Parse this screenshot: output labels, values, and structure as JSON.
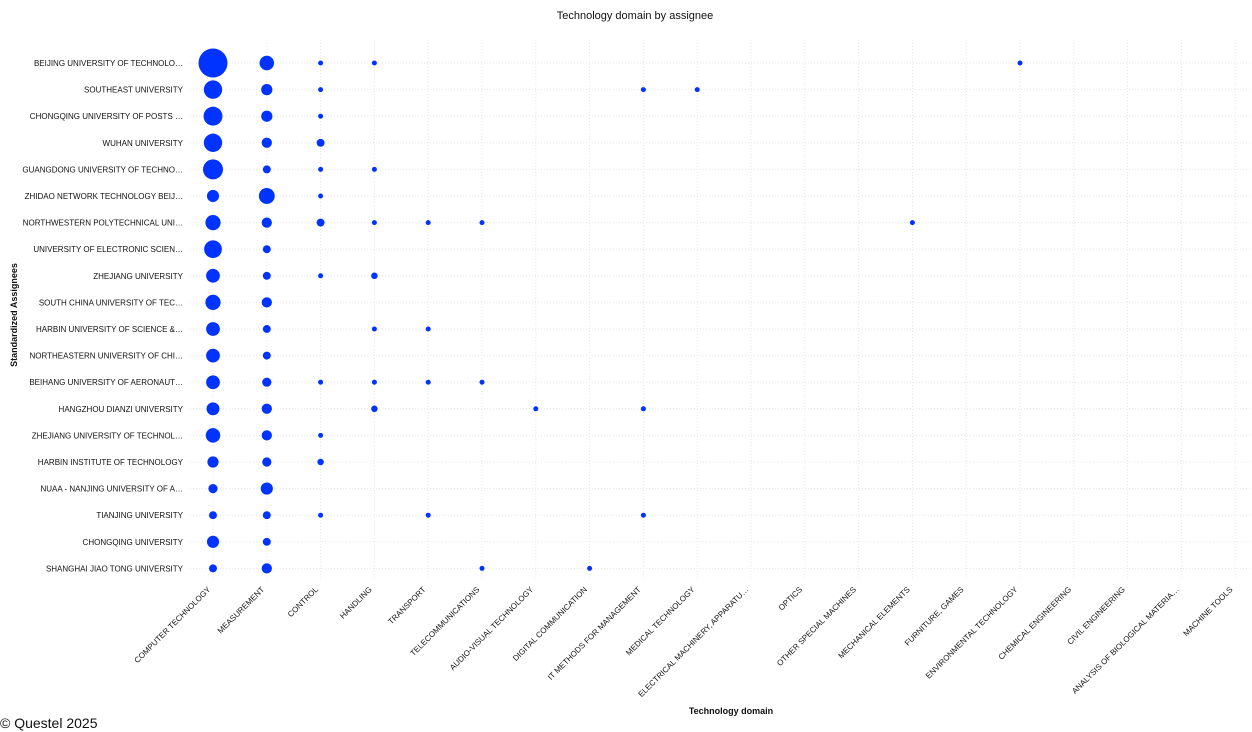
{
  "copyright": "© Questel 2025",
  "chart_data": {
    "type": "scatter",
    "title": "Technology domain by assignee",
    "xlabel": "Technology domain",
    "ylabel": "Standardized Assignees",
    "grid": true,
    "marker_color": "#0033ff",
    "x_categories": [
      "COMPUTER TECHNOLOGY",
      "MEASUREMENT",
      "CONTROL",
      "HANDLING",
      "TRANSPORT",
      "TELECOMMUNICATIONS",
      "AUDIO-VISUAL TECHNOLOGY",
      "DIGITAL COMMUNICATION",
      "IT METHODS FOR MANAGEMENT",
      "MEDICAL TECHNOLOGY",
      "ELECTRICAL MACHINERY, APPARATU…",
      "OPTICS",
      "OTHER SPECIAL MACHINES",
      "MECHANICAL ELEMENTS",
      "FURNITURE, GAMES",
      "ENVIRONMENTAL TECHNOLOGY",
      "CHEMICAL ENGINEERING",
      "CIVIL ENGINEERING",
      "ANALYSIS OF BIOLOGICAL MATERIA…",
      "MACHINE TOOLS"
    ],
    "y_categories": [
      "BEIJING UNIVERSITY OF TECHNOLO…",
      "SOUTHEAST UNIVERSITY",
      "CHONGQING UNIVERSITY OF POSTS …",
      "WUHAN UNIVERSITY",
      "GUANGDONG UNIVERSITY OF TECHNO…",
      "ZHIDAO NETWORK TECHNOLOGY BEIJ…",
      "NORTHWESTERN POLYTECHNICAL UNI…",
      "UNIVERSITY OF ELECTRONIC SCIEN…",
      "ZHEJIANG UNIVERSITY",
      "SOUTH CHINA UNIVERSITY  OF TEC…",
      "HARBIN UNIVERSITY OF SCIENCE &…",
      "NORTHEASTERN UNIVERSITY OF CHI…",
      "BEIHANG UNIVERSITY OF AERONAUT…",
      "HANGZHOU DIANZI UNIVERSITY",
      "ZHEJIANG UNIVERSITY OF TECHNOL…",
      "HARBIN INSTITUTE OF TECHNOLOGY",
      "NUAA - NANJING UNIVERSITY OF A…",
      "TIANJING UNIVERSITY",
      "CHONGQING UNIVERSITY",
      "SHANGHAI JIAO TONG UNIVERSITY"
    ],
    "points": [
      {
        "x": 0,
        "y": 0,
        "v": 40
      },
      {
        "x": 1,
        "y": 0,
        "v": 10
      },
      {
        "x": 2,
        "y": 0,
        "v": 1
      },
      {
        "x": 3,
        "y": 0,
        "v": 1
      },
      {
        "x": 15,
        "y": 0,
        "v": 1
      },
      {
        "x": 0,
        "y": 1,
        "v": 16
      },
      {
        "x": 1,
        "y": 1,
        "v": 6
      },
      {
        "x": 2,
        "y": 1,
        "v": 1
      },
      {
        "x": 8,
        "y": 1,
        "v": 1
      },
      {
        "x": 9,
        "y": 1,
        "v": 1
      },
      {
        "x": 0,
        "y": 2,
        "v": 17
      },
      {
        "x": 1,
        "y": 2,
        "v": 6
      },
      {
        "x": 2,
        "y": 2,
        "v": 1
      },
      {
        "x": 0,
        "y": 3,
        "v": 16
      },
      {
        "x": 1,
        "y": 3,
        "v": 5
      },
      {
        "x": 2,
        "y": 3,
        "v": 3
      },
      {
        "x": 0,
        "y": 4,
        "v": 19
      },
      {
        "x": 1,
        "y": 4,
        "v": 3
      },
      {
        "x": 2,
        "y": 4,
        "v": 1
      },
      {
        "x": 3,
        "y": 4,
        "v": 1
      },
      {
        "x": 0,
        "y": 5,
        "v": 7
      },
      {
        "x": 1,
        "y": 5,
        "v": 12
      },
      {
        "x": 2,
        "y": 5,
        "v": 1
      },
      {
        "x": 0,
        "y": 6,
        "v": 11
      },
      {
        "x": 1,
        "y": 6,
        "v": 5
      },
      {
        "x": 2,
        "y": 6,
        "v": 3
      },
      {
        "x": 3,
        "y": 6,
        "v": 1
      },
      {
        "x": 4,
        "y": 6,
        "v": 1
      },
      {
        "x": 5,
        "y": 6,
        "v": 1
      },
      {
        "x": 13,
        "y": 6,
        "v": 1
      },
      {
        "x": 0,
        "y": 7,
        "v": 15
      },
      {
        "x": 1,
        "y": 7,
        "v": 3
      },
      {
        "x": 0,
        "y": 8,
        "v": 9
      },
      {
        "x": 1,
        "y": 8,
        "v": 3
      },
      {
        "x": 2,
        "y": 8,
        "v": 1
      },
      {
        "x": 3,
        "y": 8,
        "v": 2
      },
      {
        "x": 0,
        "y": 9,
        "v": 11
      },
      {
        "x": 1,
        "y": 9,
        "v": 5
      },
      {
        "x": 0,
        "y": 10,
        "v": 9
      },
      {
        "x": 1,
        "y": 10,
        "v": 3
      },
      {
        "x": 3,
        "y": 10,
        "v": 1
      },
      {
        "x": 4,
        "y": 10,
        "v": 1
      },
      {
        "x": 0,
        "y": 11,
        "v": 9
      },
      {
        "x": 1,
        "y": 11,
        "v": 3
      },
      {
        "x": 0,
        "y": 12,
        "v": 9
      },
      {
        "x": 1,
        "y": 12,
        "v": 4
      },
      {
        "x": 2,
        "y": 12,
        "v": 1
      },
      {
        "x": 3,
        "y": 12,
        "v": 1
      },
      {
        "x": 4,
        "y": 12,
        "v": 1
      },
      {
        "x": 5,
        "y": 12,
        "v": 1
      },
      {
        "x": 0,
        "y": 13,
        "v": 8
      },
      {
        "x": 1,
        "y": 13,
        "v": 5
      },
      {
        "x": 3,
        "y": 13,
        "v": 2
      },
      {
        "x": 6,
        "y": 13,
        "v": 1
      },
      {
        "x": 8,
        "y": 13,
        "v": 1
      },
      {
        "x": 0,
        "y": 14,
        "v": 10
      },
      {
        "x": 1,
        "y": 14,
        "v": 5
      },
      {
        "x": 2,
        "y": 14,
        "v": 1
      },
      {
        "x": 0,
        "y": 15,
        "v": 6
      },
      {
        "x": 1,
        "y": 15,
        "v": 4
      },
      {
        "x": 2,
        "y": 15,
        "v": 2
      },
      {
        "x": 0,
        "y": 16,
        "v": 4
      },
      {
        "x": 1,
        "y": 16,
        "v": 7
      },
      {
        "x": 0,
        "y": 17,
        "v": 3
      },
      {
        "x": 1,
        "y": 17,
        "v": 3
      },
      {
        "x": 2,
        "y": 17,
        "v": 1
      },
      {
        "x": 4,
        "y": 17,
        "v": 1
      },
      {
        "x": 8,
        "y": 17,
        "v": 1
      },
      {
        "x": 0,
        "y": 18,
        "v": 7
      },
      {
        "x": 1,
        "y": 18,
        "v": 3
      },
      {
        "x": 0,
        "y": 19,
        "v": 3
      },
      {
        "x": 1,
        "y": 19,
        "v": 5
      },
      {
        "x": 5,
        "y": 19,
        "v": 1
      },
      {
        "x": 7,
        "y": 19,
        "v": 1
      }
    ]
  }
}
